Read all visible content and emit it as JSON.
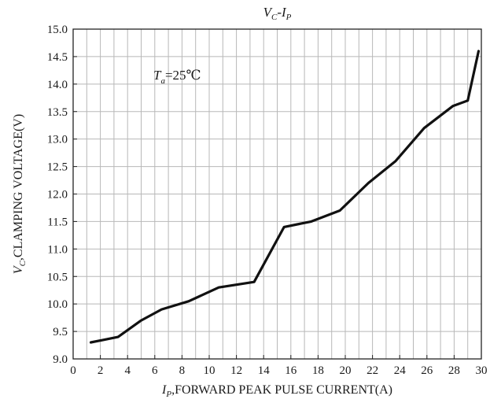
{
  "chart_data": {
    "type": "line",
    "title": {
      "main": "V",
      "main_sub": "C",
      "sep": "-I",
      "sep_sub": "P"
    },
    "xlabel": {
      "main": "I",
      "sub": "P",
      "rest": ",FORWARD PEAK PULSE CURRENT(A)"
    },
    "ylabel": {
      "main": "V",
      "sub": "C",
      "rest": ",CLAMPING VOLTAGE(V)"
    },
    "annotation": {
      "main": "T",
      "sub": "a",
      "rest": "=25℃"
    },
    "xlim": [
      0,
      30
    ],
    "ylim": [
      9.0,
      15.0
    ],
    "x_ticks": [
      "0",
      "2",
      "4",
      "6",
      "8",
      "10",
      "12",
      "14",
      "16",
      "18",
      "20",
      "22",
      "24",
      "26",
      "28",
      "30"
    ],
    "y_ticks": [
      "9.0",
      "9.5",
      "10.0",
      "10.5",
      "11.0",
      "11.5",
      "12.0",
      "12.5",
      "13.0",
      "13.5",
      "14.0",
      "14.5",
      "15.0"
    ],
    "x_grid_step": 1,
    "y_grid_step": 0.5,
    "grid": true,
    "line_color": "#111111",
    "series": [
      {
        "x": [
          1.3,
          3.3,
          5.0,
          6.5,
          8.5,
          10.7,
          13.3,
          15.5,
          17.5,
          19.6,
          21.7,
          23.7,
          25.8,
          27.9,
          29.0,
          29.8
        ],
        "y": [
          9.3,
          9.4,
          9.7,
          9.9,
          10.05,
          10.3,
          10.4,
          11.4,
          11.5,
          11.7,
          12.2,
          12.6,
          13.2,
          13.6,
          13.7,
          14.6
        ]
      }
    ]
  }
}
